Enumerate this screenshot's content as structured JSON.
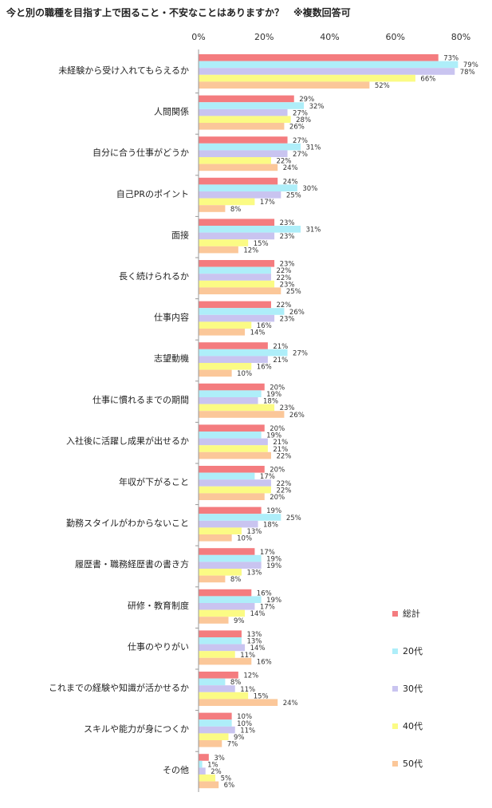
{
  "chart_data": {
    "type": "bar",
    "orientation": "horizontal",
    "title": "今と別の職種を目指す上で困ること・不安なことはありますか？　※複数回答可",
    "xlim": [
      0,
      80
    ],
    "xticks": [
      "0%",
      "20%",
      "40%",
      "60%",
      "80%"
    ],
    "tick_position": "top",
    "legend_position": "right",
    "grid": false,
    "categories": [
      "未経験から受け入れてもらえるか",
      "人間関係",
      "自分に合う仕事がどうか",
      "自己PRのポイント",
      "面接",
      "長く続けられるか",
      "仕事内容",
      "志望動機",
      "仕事に慣れるまでの期間",
      "入社後に活躍し成果が出せるか",
      "年収が下がること",
      "勤務スタイルがわからないこと",
      "履歴書・職務経歴書の書き方",
      "研修・教育制度",
      "仕事のやりがい",
      "これまでの経験や知識が活かせるか",
      "スキルや能力が身につくか",
      "その他"
    ],
    "series": [
      {
        "name": "総計",
        "color": "#f47c7f",
        "values": [
          73,
          29,
          27,
          24,
          23,
          23,
          22,
          21,
          20,
          20,
          20,
          19,
          17,
          16,
          13,
          12,
          10,
          3
        ]
      },
      {
        "name": "20代",
        "color": "#aeeef9",
        "values": [
          79,
          32,
          31,
          30,
          31,
          22,
          26,
          27,
          19,
          19,
          17,
          25,
          19,
          19,
          13,
          8,
          10,
          1
        ]
      },
      {
        "name": "30代",
        "color": "#c9c4f0",
        "values": [
          78,
          27,
          27,
          25,
          23,
          22,
          23,
          21,
          18,
          21,
          22,
          18,
          19,
          17,
          14,
          11,
          11,
          2
        ]
      },
      {
        "name": "40代",
        "color": "#fbfb84",
        "values": [
          66,
          28,
          22,
          17,
          15,
          23,
          16,
          16,
          23,
          21,
          22,
          13,
          13,
          14,
          11,
          15,
          9,
          5
        ]
      },
      {
        "name": "50代",
        "color": "#fbc799",
        "values": [
          52,
          26,
          24,
          8,
          12,
          25,
          14,
          10,
          26,
          22,
          20,
          10,
          8,
          9,
          16,
          24,
          7,
          6
        ]
      }
    ]
  }
}
